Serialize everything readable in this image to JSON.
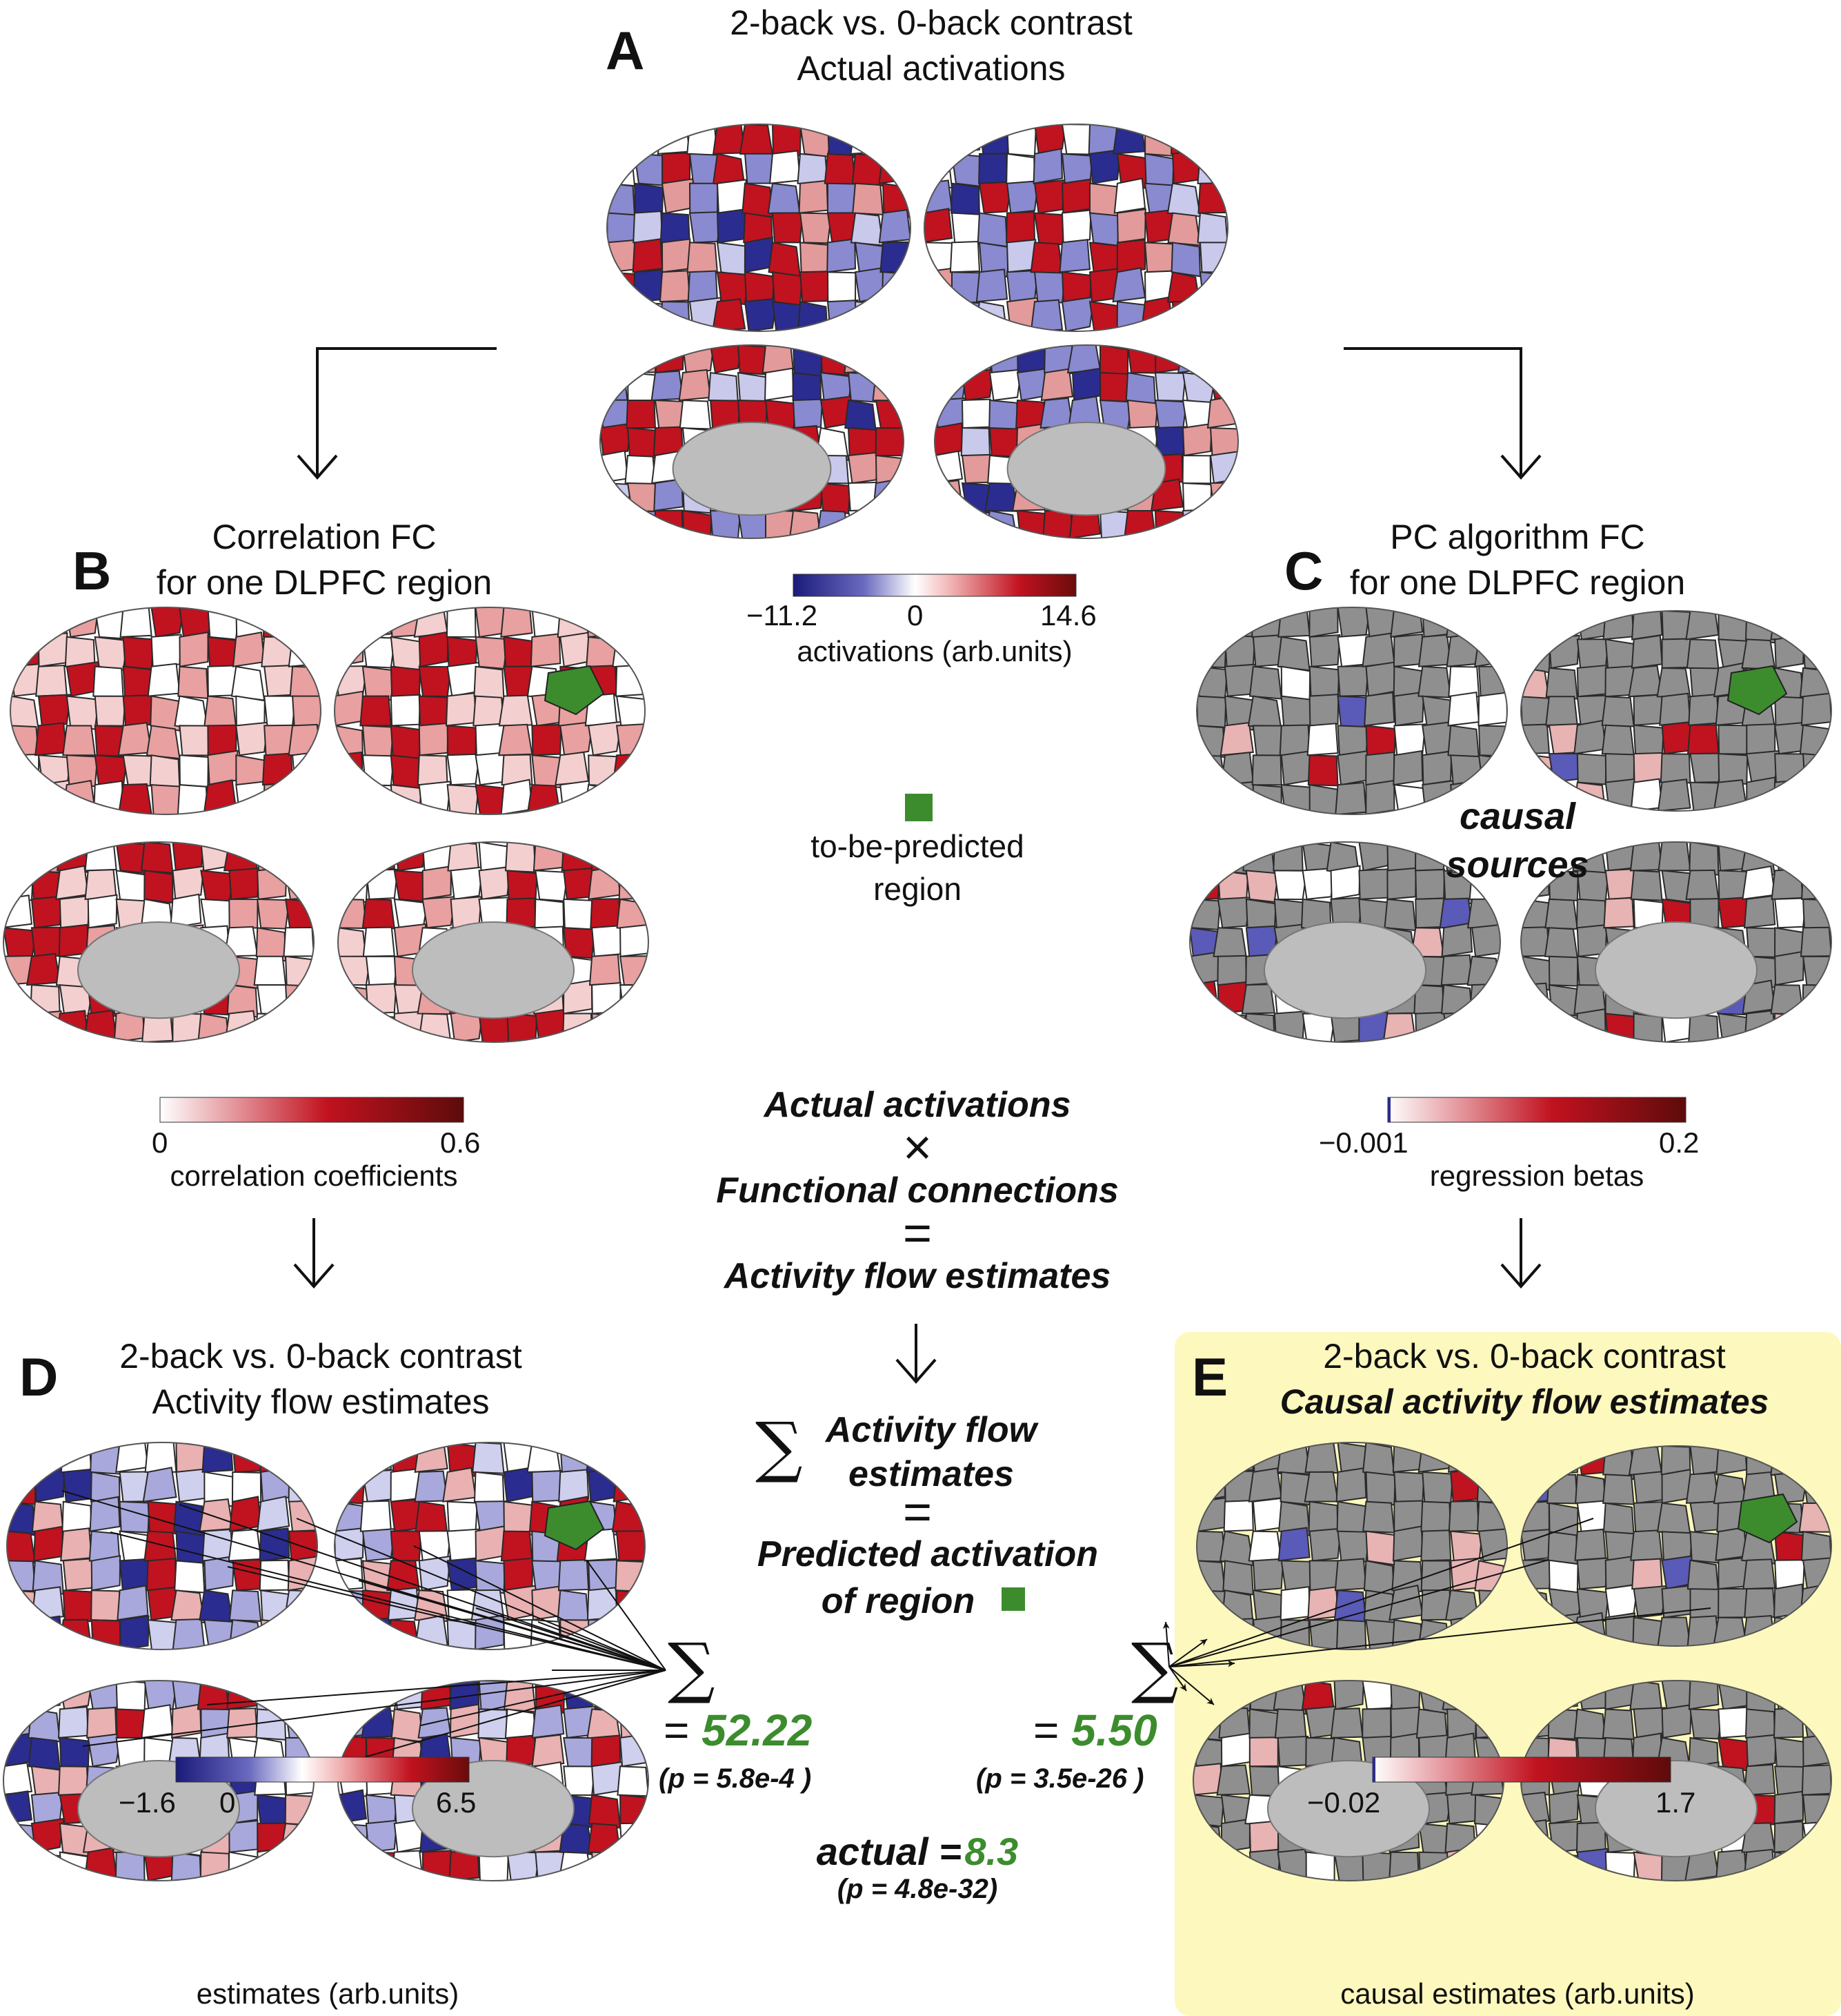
{
  "panels": {
    "A": {
      "letter": "A",
      "title1": "2-back vs. 0-back contrast",
      "title2": "Actual activations",
      "cbar_min": "−11.2",
      "cbar_mid": "0",
      "cbar_max": "14.6",
      "cbar_caption": "activations (arb.units)"
    },
    "B": {
      "letter": "B",
      "title1": "Correlation FC",
      "title2": "for one DLPFC region",
      "cbar_min": "0",
      "cbar_max": "0.6",
      "cbar_caption": "correlation coefficients"
    },
    "C": {
      "letter": "C",
      "title1": "PC algorithm FC",
      "title2": "for one DLPFC region",
      "cbar_min": "−0.001",
      "cbar_max": "0.2",
      "cbar_caption": "regression betas",
      "annotation1": "causal",
      "annotation2": "sources"
    },
    "D": {
      "letter": "D",
      "title1": "2-back vs. 0-back contrast",
      "title2": "Activity flow estimates",
      "cbar_min": "−1.6",
      "cbar_mid": "0",
      "cbar_max": "6.5",
      "cbar_caption": "estimates (arb.units)",
      "sum_equals": "=",
      "sum_value": "52.22",
      "pvalue": "(p = 5.8e-4 )"
    },
    "E": {
      "letter": "E",
      "title1": "2-back vs. 0-back contrast",
      "title2": "Causal activity flow estimates",
      "cbar_min": "−0.02",
      "cbar_max": "1.7",
      "cbar_caption": "causal estimates (arb.units)",
      "sum_equals": "=",
      "sum_value": "5.50",
      "pvalue": "(p = 3.5e-26 )"
    }
  },
  "legend": {
    "line1": "to-be-predicted",
    "line2": "region"
  },
  "equation": {
    "line1": "Actual activations",
    "times": "×",
    "line2": "Functional connections",
    "eq1": "=",
    "line3": "Activity flow estimates",
    "sum_top": "Activity flow",
    "sum_bottom": "estimates",
    "eq2": "=",
    "line4": "Predicted activation",
    "line5": "of region"
  },
  "actual": {
    "label": "actual =",
    "value": "8.3",
    "pvalue": "(p = 4.8e-32)"
  },
  "sigma": "∑",
  "colors": {
    "green": "#3c8c2e",
    "highlight_bg": "#fdf8bd",
    "red": "#c1121f",
    "blue": "#2b2c8f",
    "gray": "#8c8c8c"
  }
}
